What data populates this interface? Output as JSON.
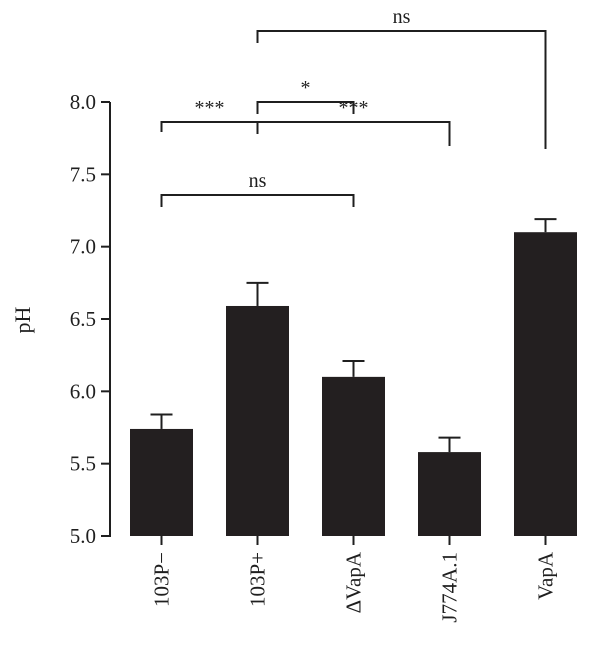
{
  "chart_data": {
    "type": "bar",
    "title": "",
    "xlabel": "",
    "ylabel": "pH",
    "ylim": [
      5.0,
      8.0
    ],
    "yticks": [
      "5.0",
      "5.5",
      "6.0",
      "6.5",
      "7.0",
      "7.5",
      "8.0"
    ],
    "categories": [
      "103P−",
      "103P+",
      "ΔVapA",
      "J774A.1",
      "VapA"
    ],
    "values": [
      5.74,
      6.59,
      6.1,
      5.58,
      7.1
    ],
    "errors": [
      0.1,
      0.16,
      0.11,
      0.1,
      0.09
    ],
    "grid": false,
    "bar_color": "#231f20",
    "significance": [
      {
        "from": 1,
        "to": 4,
        "label": "ns"
      },
      {
        "from": 1,
        "to": 2,
        "label": "*"
      },
      {
        "from": 0,
        "to": 1,
        "label": "***"
      },
      {
        "from": 1,
        "to": 3,
        "label": "***"
      },
      {
        "from": 0,
        "to": 2,
        "label": "ns"
      }
    ]
  }
}
